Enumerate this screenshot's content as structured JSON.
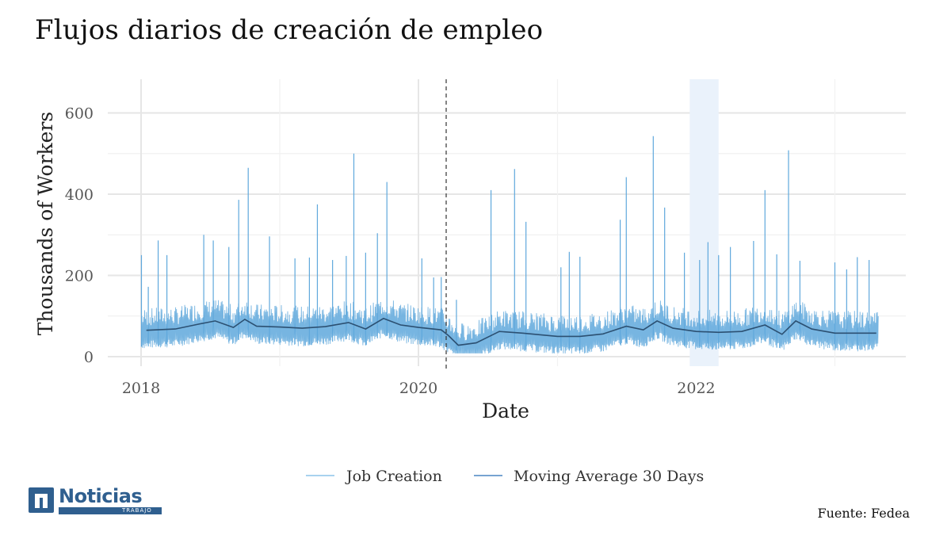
{
  "chart_data": {
    "type": "line",
    "title": "Flujos diarios de creación de empleo",
    "xlabel": "Date",
    "ylabel": "Thousands of Workers",
    "xlim": [
      "2018-01-01",
      "2023-05-15"
    ],
    "ylim": [
      0,
      640
    ],
    "x_ticks": [
      "2018",
      "2020",
      "2022"
    ],
    "y_ticks": [
      0,
      200,
      400,
      600
    ],
    "grid": true,
    "legend_position": "bottom",
    "vline": {
      "date": "2020-03-14",
      "style": "dashed"
    },
    "shaded_region": {
      "start": "2021-12-15",
      "end": "2022-03-01"
    },
    "series": [
      {
        "name": "Job Creation",
        "color": "#5fa8dc",
        "style": "daily",
        "baseline_low": 25,
        "baseline_high": 95,
        "spikes": [
          [
            "2018-01-02",
            250
          ],
          [
            "2018-01-20",
            172
          ],
          [
            "2018-02-15",
            286
          ],
          [
            "2018-03-10",
            250
          ],
          [
            "2018-06-15",
            300
          ],
          [
            "2018-07-10",
            286
          ],
          [
            "2018-08-20",
            270
          ],
          [
            "2018-09-15",
            386
          ],
          [
            "2018-10-10",
            465
          ],
          [
            "2018-12-05",
            296
          ],
          [
            "2019-02-10",
            242
          ],
          [
            "2019-03-20",
            244
          ],
          [
            "2019-04-10",
            375
          ],
          [
            "2019-05-20",
            238
          ],
          [
            "2019-06-25",
            248
          ],
          [
            "2019-07-15",
            500
          ],
          [
            "2019-08-15",
            256
          ],
          [
            "2019-09-15",
            304
          ],
          [
            "2019-10-10",
            430
          ],
          [
            "2020-01-10",
            242
          ],
          [
            "2020-02-10",
            195
          ],
          [
            "2020-03-01",
            196
          ],
          [
            "2020-04-10",
            140
          ],
          [
            "2020-07-10",
            410
          ],
          [
            "2020-09-10",
            462
          ],
          [
            "2020-10-10",
            332
          ],
          [
            "2021-01-10",
            220
          ],
          [
            "2021-02-01",
            258
          ],
          [
            "2021-03-01",
            246
          ],
          [
            "2021-06-15",
            337
          ],
          [
            "2021-07-01",
            442
          ],
          [
            "2021-09-10",
            543
          ],
          [
            "2021-10-10",
            367
          ],
          [
            "2021-12-01",
            256
          ],
          [
            "2022-01-10",
            238
          ],
          [
            "2022-02-01",
            282
          ],
          [
            "2022-03-01",
            250
          ],
          [
            "2022-04-01",
            270
          ],
          [
            "2022-06-01",
            285
          ],
          [
            "2022-07-01",
            410
          ],
          [
            "2022-08-01",
            252
          ],
          [
            "2022-09-01",
            508
          ],
          [
            "2022-10-01",
            236
          ],
          [
            "2023-01-01",
            232
          ],
          [
            "2023-02-01",
            215
          ],
          [
            "2023-03-01",
            245
          ],
          [
            "2023-04-01",
            238
          ]
        ]
      },
      {
        "name": "Moving Average 30 Days",
        "color": "#2c5072",
        "x": [
          "2018-01-15",
          "2018-04-01",
          "2018-06-01",
          "2018-07-15",
          "2018-09-01",
          "2018-10-01",
          "2018-11-01",
          "2019-01-01",
          "2019-03-01",
          "2019-05-01",
          "2019-07-01",
          "2019-08-15",
          "2019-10-01",
          "2019-11-15",
          "2020-01-01",
          "2020-03-01",
          "2020-03-20",
          "2020-04-15",
          "2020-06-01",
          "2020-08-01",
          "2020-10-01",
          "2021-01-01",
          "2021-03-01",
          "2021-05-01",
          "2021-07-01",
          "2021-08-15",
          "2021-09-20",
          "2021-11-01",
          "2022-01-01",
          "2022-03-01",
          "2022-05-01",
          "2022-07-01",
          "2022-08-15",
          "2022-09-20",
          "2022-11-01",
          "2023-01-01",
          "2023-04-20"
        ],
        "values": [
          65,
          68,
          80,
          88,
          72,
          92,
          75,
          73,
          70,
          74,
          84,
          68,
          94,
          78,
          72,
          66,
          52,
          28,
          34,
          62,
          58,
          50,
          50,
          56,
          75,
          66,
          88,
          70,
          62,
          60,
          62,
          78,
          55,
          88,
          68,
          58,
          58
        ]
      }
    ]
  },
  "legend": {
    "items": [
      {
        "label": "Job Creation",
        "color": "#8cc4ea"
      },
      {
        "label": "Moving Average 30 Days",
        "color": "#4a86c2"
      }
    ]
  },
  "footer": {
    "source": "Fuente: Fedea",
    "logo_word": "Noticias",
    "logo_sub": "TRABAJO"
  }
}
